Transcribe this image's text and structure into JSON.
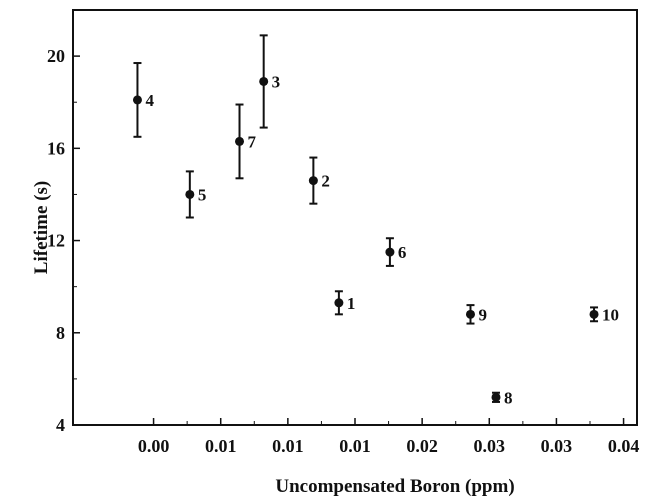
{
  "chart_data": {
    "type": "scatter",
    "title": "",
    "xlabel": "Uncompensated Boron (ppm)",
    "ylabel": "Lifetime (s)",
    "xlim": [
      -0.006,
      0.036
    ],
    "ylim": [
      4,
      22
    ],
    "x_ticks": [
      0.0,
      0.005,
      0.01,
      0.015,
      0.02,
      0.025,
      0.03,
      0.035
    ],
    "x_tick_labels": [
      "0.00",
      "0.01",
      "0.01",
      "0.01",
      "0.02",
      "0.03",
      "0.03",
      "0.04"
    ],
    "y_ticks": [
      4,
      8,
      12,
      16,
      20
    ],
    "y_tick_labels": [
      "4",
      "8",
      "12",
      "16",
      "20"
    ],
    "grid": false,
    "points": [
      {
        "label": "1",
        "x": 0.0138,
        "y": 9.3,
        "err": 0.5
      },
      {
        "label": "2",
        "x": 0.0119,
        "y": 14.6,
        "err": 1.0
      },
      {
        "label": "3",
        "x": 0.0082,
        "y": 18.9,
        "err": 2.0
      },
      {
        "label": "4",
        "x": -0.0012,
        "y": 18.1,
        "err": 1.6
      },
      {
        "label": "5",
        "x": 0.0027,
        "y": 14.0,
        "err": 1.0
      },
      {
        "label": "6",
        "x": 0.0176,
        "y": 11.5,
        "err": 0.6
      },
      {
        "label": "7",
        "x": 0.0064,
        "y": 16.3,
        "err": 1.6
      },
      {
        "label": "8",
        "x": 0.0255,
        "y": 5.2,
        "err": 0.2
      },
      {
        "label": "9",
        "x": 0.0236,
        "y": 8.8,
        "err": 0.4
      },
      {
        "label": "10",
        "x": 0.0328,
        "y": 8.8,
        "err": 0.3
      }
    ]
  }
}
